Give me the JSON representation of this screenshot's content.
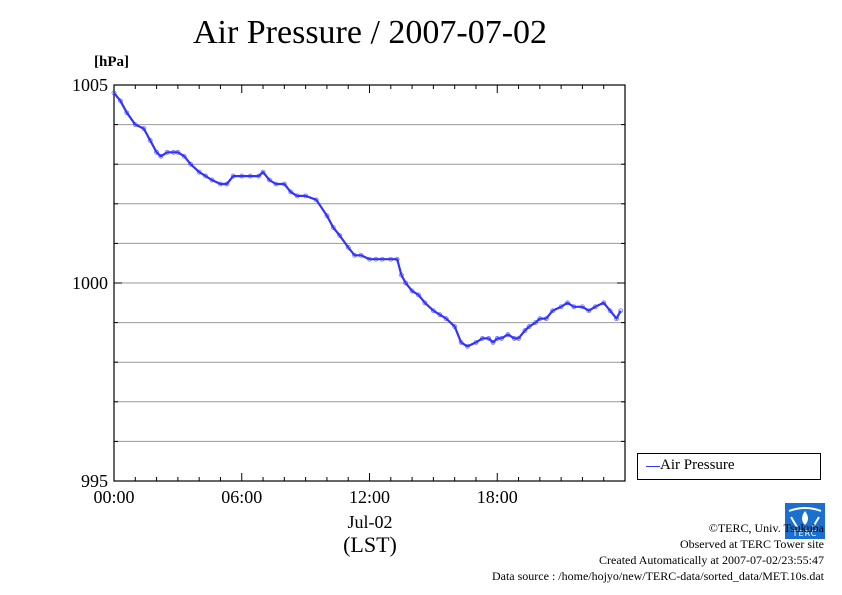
{
  "chart_data": {
    "type": "line",
    "title": "Air Pressure / 2007-07-02",
    "ylabel": "[hPa]",
    "xlabel": "Jul-02",
    "x_unit_label": "(LST)",
    "ylim": [
      995,
      1005
    ],
    "xlim": [
      "00:00",
      "24:00"
    ],
    "y_ticks": [
      {
        "value": 995,
        "label": "995"
      },
      {
        "value": 1000,
        "label": "1000"
      },
      {
        "value": 1005,
        "label": "1005"
      }
    ],
    "x_ticks": [
      {
        "hour": 0,
        "label": "00:00"
      },
      {
        "hour": 6,
        "label": "06:00"
      },
      {
        "hour": 12,
        "label": "12:00"
      },
      {
        "hour": 18,
        "label": "18:00"
      }
    ],
    "grid": true,
    "legend": {
      "position": "right",
      "entries": [
        "Air Pressure"
      ]
    },
    "series": [
      {
        "name": "Air Pressure",
        "color": "#3333ff",
        "x_hours": [
          0.0,
          0.3,
          0.6,
          1.0,
          1.4,
          1.7,
          2.0,
          2.2,
          2.5,
          2.8,
          3.0,
          3.3,
          3.6,
          4.0,
          4.3,
          4.6,
          5.0,
          5.3,
          5.6,
          6.0,
          6.4,
          6.8,
          7.0,
          7.3,
          7.6,
          8.0,
          8.3,
          8.6,
          9.0,
          9.5,
          10.0,
          10.3,
          10.6,
          11.0,
          11.3,
          11.6,
          12.0,
          12.3,
          12.6,
          13.0,
          13.3,
          13.5,
          13.7,
          14.0,
          14.3,
          14.6,
          15.0,
          15.3,
          15.6,
          16.0,
          16.3,
          16.6,
          17.0,
          17.3,
          17.6,
          17.8,
          18.0,
          18.2,
          18.5,
          18.8,
          19.0,
          19.3,
          19.5,
          19.8,
          20.0,
          20.3,
          20.6,
          21.0,
          21.3,
          21.6,
          22.0,
          22.3,
          22.6,
          23.0,
          23.3,
          23.6,
          23.8
        ],
        "y_values": [
          1004.8,
          1004.6,
          1004.3,
          1004.0,
          1003.9,
          1003.6,
          1003.3,
          1003.2,
          1003.3,
          1003.3,
          1003.3,
          1003.2,
          1003.0,
          1002.8,
          1002.7,
          1002.6,
          1002.5,
          1002.5,
          1002.7,
          1002.7,
          1002.7,
          1002.7,
          1002.8,
          1002.6,
          1002.5,
          1002.5,
          1002.3,
          1002.2,
          1002.2,
          1002.1,
          1001.7,
          1001.4,
          1001.2,
          1000.9,
          1000.7,
          1000.7,
          1000.6,
          1000.6,
          1000.6,
          1000.6,
          1000.6,
          1000.2,
          1000.0,
          999.8,
          999.7,
          999.5,
          999.3,
          999.2,
          999.1,
          998.9,
          998.5,
          998.4,
          998.5,
          998.6,
          998.6,
          998.5,
          998.6,
          998.6,
          998.7,
          998.6,
          998.6,
          998.8,
          998.9,
          999.0,
          999.1,
          999.1,
          999.3,
          999.4,
          999.5,
          999.4,
          999.4,
          999.3,
          999.4,
          999.5,
          999.3,
          999.1,
          999.3
        ]
      }
    ]
  },
  "credits": {
    "copyright": "©TERC, Univ. Tsukuba",
    "site": "Observed at TERC Tower site",
    "created": "Created Automatically at 2007-07-02/23:55:47",
    "source": "Data source : /home/hojyo/new/TERC-data/sorted_data/MET.10s.dat",
    "logo_text": "TERC",
    "logo_color": "#1a6fd0"
  }
}
